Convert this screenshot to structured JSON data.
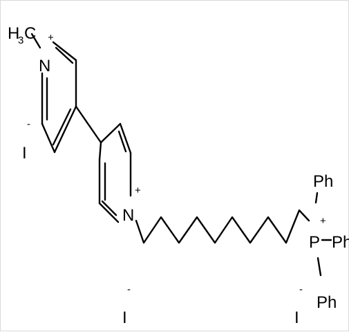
{
  "molecule": {
    "methyl": {
      "h": "H",
      "three": "3",
      "c": "C"
    },
    "n1": {
      "symbol": "N",
      "charge": "+"
    },
    "n2": {
      "symbol": "N",
      "charge": "+"
    },
    "phosphorus": {
      "symbol": "P",
      "charge": "+"
    },
    "phenyl_top": "Ph",
    "phenyl_right": "Ph",
    "phenyl_bottom": "Ph",
    "iodide_left": {
      "symbol": "I",
      "charge": "-"
    },
    "iodide_mid": {
      "symbol": "I",
      "charge": "-"
    },
    "iodide_right": {
      "symbol": "I",
      "charge": "-"
    }
  }
}
